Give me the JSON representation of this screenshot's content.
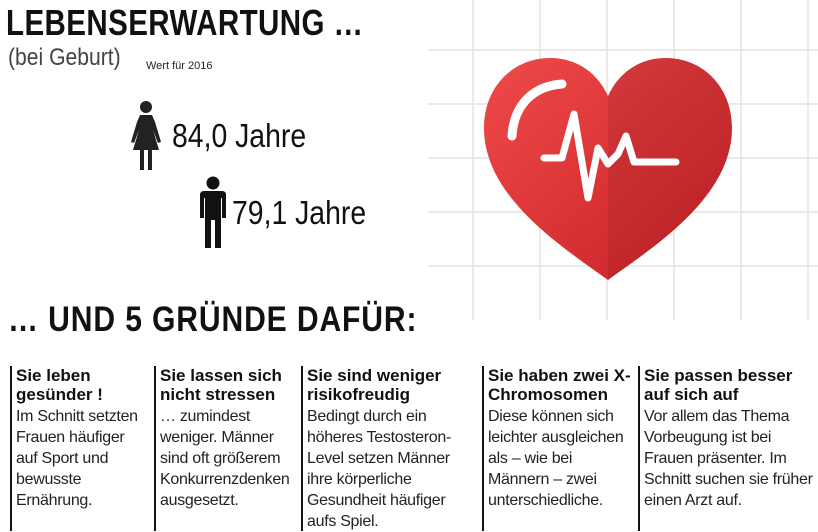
{
  "header": {
    "title": "LEBENSERWARTUNG …",
    "subtitle": "(bei Geburt)",
    "note": "Wert für 2016"
  },
  "stats": {
    "female": {
      "icon": "woman-icon",
      "value": "84,0 Jahre"
    },
    "male": {
      "icon": "man-icon",
      "value": "79,1 Jahre"
    }
  },
  "illustration": {
    "icon": "heart-pulse-icon",
    "color": "#e23a3a"
  },
  "reasons_title": "… UND 5 GRÜNDE DAFÜR:",
  "reasons": [
    {
      "heading": "Sie leben gesünder !",
      "text": "Im Schnitt setzten Frauen häufiger auf Sport und bewusste Ernährung."
    },
    {
      "heading": "Sie lassen sich nicht stressen",
      "text": "… zumindest weniger. Männer sind oft größerem Konkurrenzdenken ausgesetzt."
    },
    {
      "heading": "Sie sind weniger risikofreudig",
      "text": "Bedingt durch ein höheres Testosteron-Level setzen Männer ihre körperliche Gesundheit häufiger aufs Spiel."
    },
    {
      "heading": "Sie haben zwei X-Chromosomen",
      "text": "Diese können sich leichter ausgleichen als – wie bei Männern – zwei unterschiedliche."
    },
    {
      "heading": "Sie passen besser auf sich auf",
      "text": "Vor allem das Thema Vorbeugung ist bei Frauen präsenter. Im Schnitt suchen sie früher einen Arzt auf."
    }
  ]
}
